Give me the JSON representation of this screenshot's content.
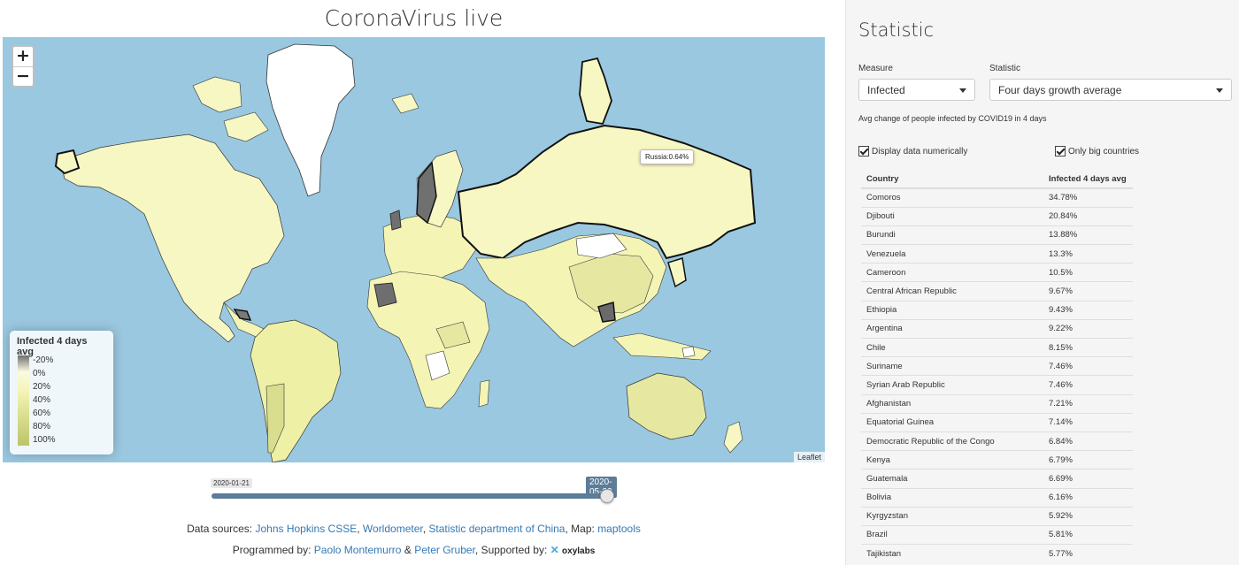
{
  "page": {
    "title": "CoronaVirus live"
  },
  "map": {
    "zoom_in": "+",
    "zoom_out": "−",
    "attribution": "Leaflet",
    "tooltip": "Russia:0.64%",
    "legend": {
      "title": "Infected 4 days avg",
      "labels": [
        "-20%",
        "0%",
        "20%",
        "40%",
        "60%",
        "80%",
        "100%"
      ]
    },
    "colors": {
      "ocean": "#9ac8e0",
      "low": "#fafae1",
      "mid": "#f4f4b5",
      "high": "#bcc46a",
      "negative": "#6f6f6f",
      "greenland": "#ffffff"
    }
  },
  "slider": {
    "min_label": "2020-01-21",
    "current_label": "2020-05-22",
    "position_fraction": 1.0
  },
  "footer": {
    "sources_prefix": "Data sources:",
    "source_1": "Johns Hopkins CSSE",
    "sep_1": ",",
    "source_2": "Worldometer",
    "sep_2": ",",
    "source_3": "Statistic department of China",
    "map_prefix": ", Map:",
    "map_link": "maptools",
    "programmed_prefix": "Programmed by:",
    "author_1": "Paolo Montemurro",
    "amp": "&",
    "author_2": "Peter Gruber",
    "supported_prefix": ", Supported by:",
    "sponsor": "oxylabs"
  },
  "sidebar": {
    "title": "Statistic",
    "measure_label": "Measure",
    "measure_value": "Infected",
    "statistic_label": "Statistic",
    "statistic_value": "Four days growth average",
    "description": "Avg change of people infected by COVID19 in 4 days",
    "check_numeric": "Display data numerically",
    "check_big": "Only big countries",
    "table": {
      "columns": [
        "Country",
        "Infected 4 days avg"
      ],
      "rows": [
        [
          "Comoros",
          "34.78%"
        ],
        [
          "Djibouti",
          "20.84%"
        ],
        [
          "Burundi",
          "13.88%"
        ],
        [
          "Venezuela",
          "13.3%"
        ],
        [
          "Cameroon",
          "10.5%"
        ],
        [
          "Central African Republic",
          "9.67%"
        ],
        [
          "Ethiopia",
          "9.43%"
        ],
        [
          "Argentina",
          "9.22%"
        ],
        [
          "Chile",
          "8.15%"
        ],
        [
          "Suriname",
          "7.46%"
        ],
        [
          "Syrian Arab Republic",
          "7.46%"
        ],
        [
          "Afghanistan",
          "7.21%"
        ],
        [
          "Equatorial Guinea",
          "7.14%"
        ],
        [
          "Democratic Republic of the Congo",
          "6.84%"
        ],
        [
          "Kenya",
          "6.79%"
        ],
        [
          "Guatemala",
          "6.69%"
        ],
        [
          "Bolivia",
          "6.16%"
        ],
        [
          "Kyrgyzstan",
          "5.92%"
        ],
        [
          "Brazil",
          "5.81%"
        ],
        [
          "Tajikistan",
          "5.77%"
        ]
      ]
    }
  }
}
